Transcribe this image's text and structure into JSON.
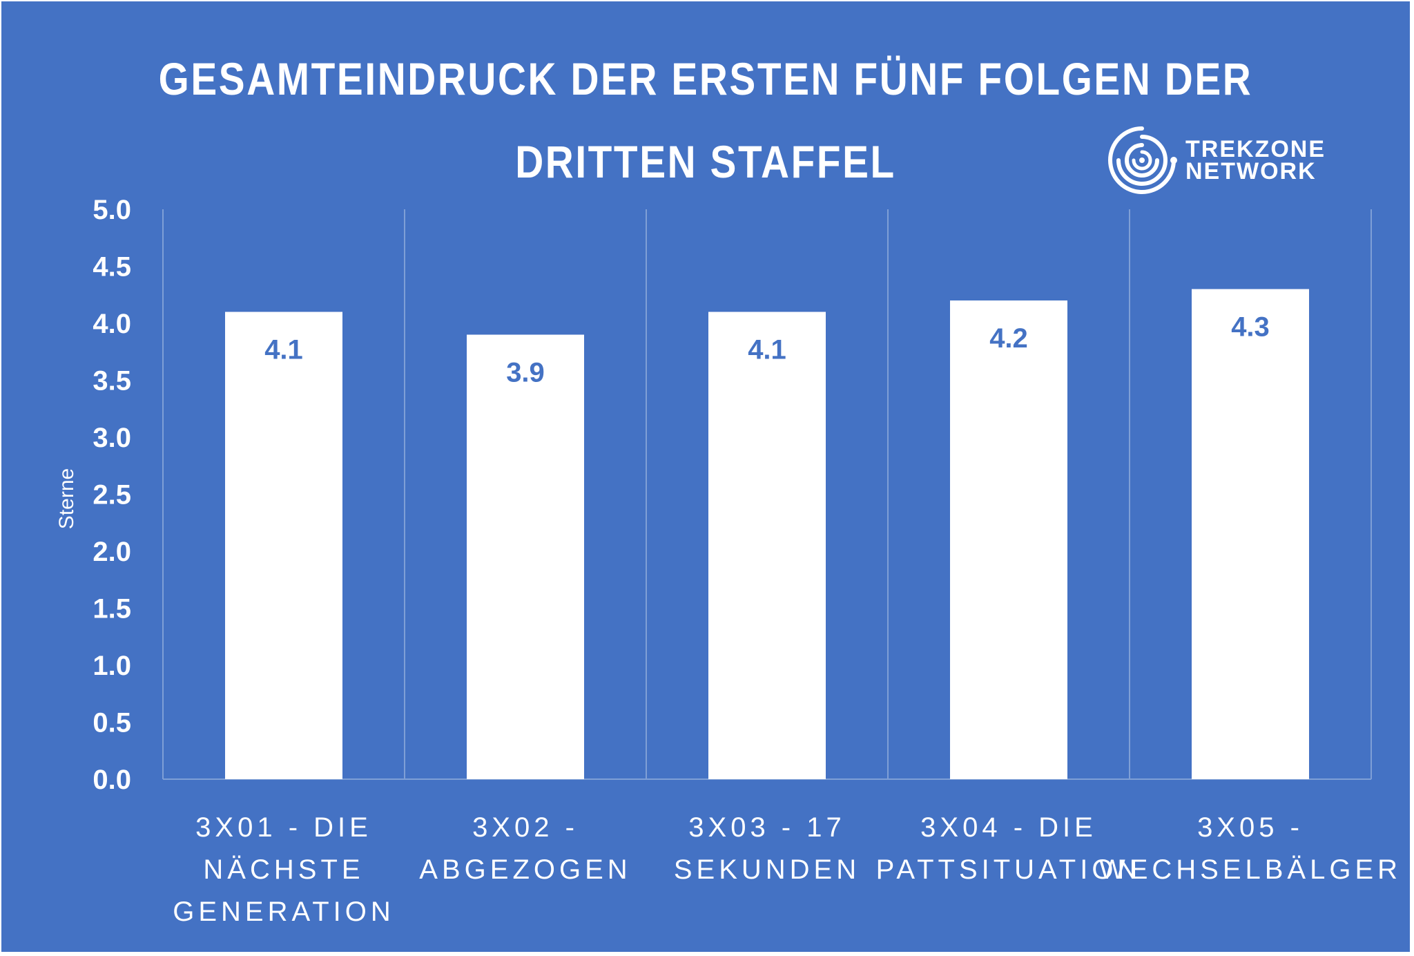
{
  "title_lines": [
    "GESAMTEINDRUCK DER ERSTEN FÜNF FOLGEN DER",
    "DRITTEN STAFFEL"
  ],
  "logo": {
    "line1": "TREKZONE",
    "line2": "NETWORK",
    "icon": "spiral-logo-icon"
  },
  "colors": {
    "background": "#4472C4",
    "bar": "#FFFFFF",
    "data_label": "#4472C4",
    "grid": "#7F9FD6"
  },
  "chart_data": {
    "type": "bar",
    "title": "GESAMTEINDRUCK DER ERSTEN FÜNF FOLGEN DER DRITTEN STAFFEL",
    "categories": [
      [
        "3X01 - DIE",
        "NÄCHSTE",
        "GENERATION"
      ],
      [
        "3X02 -",
        "ABGEZOGEN"
      ],
      [
        "3X03 - 17",
        "SEKUNDEN"
      ],
      [
        "3X04 - DIE",
        "PATTSITUATION"
      ],
      [
        "3X05 -",
        "WECHSELBÄLGER"
      ]
    ],
    "values": [
      4.1,
      3.9,
      4.1,
      4.2,
      4.3
    ],
    "data_labels": [
      "4.1",
      "3.9",
      "4.1",
      "4.2",
      "4.3"
    ],
    "ylabel": "Sterne",
    "ylim": [
      0,
      5
    ],
    "yticks": [
      "0.0",
      "0.5",
      "1.0",
      "1.5",
      "2.0",
      "2.5",
      "3.0",
      "3.5",
      "4.0",
      "4.5",
      "5.0"
    ],
    "grid": "vertical separators between categories",
    "legend": "none"
  }
}
